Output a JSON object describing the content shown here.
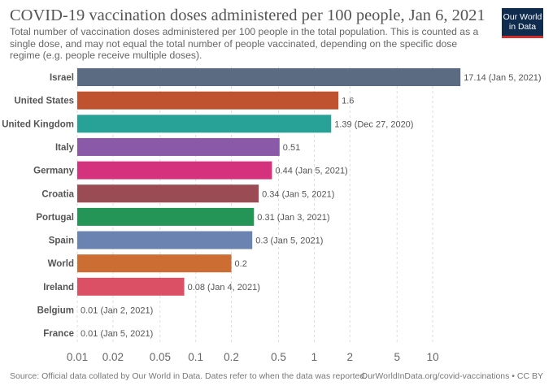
{
  "header": {
    "title": "COVID-19 vaccination doses administered per 100 people, Jan 6, 2021",
    "subtitle": "Total number of vaccination doses administered per 100 people in the total population. This is counted as a single dose, and may not equal the total number of people vaccinated, depending on the specific dose regime (e.g. people receive multiple doses).",
    "logo_text": "Our World in Data"
  },
  "footer": {
    "source": "Source: Official data collated by Our World in Data. Dates refer to when the data was reported.",
    "url": "OurWorldInData.org/covid-vaccinations • CC BY"
  },
  "chart_data": {
    "type": "bar",
    "orientation": "horizontal",
    "x_scale": "log",
    "xlim": [
      0.01,
      17.14
    ],
    "grid": "vertical dashed",
    "x_ticks": [
      "0.01",
      "0.02",
      "0.05",
      "0.1",
      "0.2",
      "0.5",
      "1",
      "2",
      "5",
      "10"
    ],
    "x_tick_values": [
      0.01,
      0.02,
      0.05,
      0.1,
      0.2,
      0.5,
      1,
      2,
      5,
      10
    ],
    "categories": [
      "Israel",
      "United States",
      "United Kingdom",
      "Italy",
      "Germany",
      "Croatia",
      "Portugal",
      "Spain",
      "World",
      "Ireland",
      "Belgium",
      "France"
    ],
    "values": [
      17.14,
      1.6,
      1.39,
      0.51,
      0.44,
      0.34,
      0.31,
      0.3,
      0.2,
      0.08,
      0.01,
      0.01
    ],
    "data_labels": [
      "17.14 (Jan 5, 2021)",
      "1.6",
      "1.39 (Dec 27, 2020)",
      "0.51",
      "0.44 (Jan 5, 2021)",
      "0.34 (Jan 5, 2021)",
      "0.31 (Jan 3, 2021)",
      "0.3 (Jan 5, 2021)",
      "0.2",
      "0.08 (Jan 4, 2021)",
      "0.01 (Jan 2, 2021)",
      "0.01 (Jan 5, 2021)"
    ],
    "colors": [
      "#5b6b82",
      "#c0532f",
      "#28a197",
      "#8a5aa8",
      "#d4327c",
      "#9a4b53",
      "#259457",
      "#6b83b1",
      "#cc6e33",
      "#dc5066",
      "#999999",
      "#999999"
    ]
  }
}
